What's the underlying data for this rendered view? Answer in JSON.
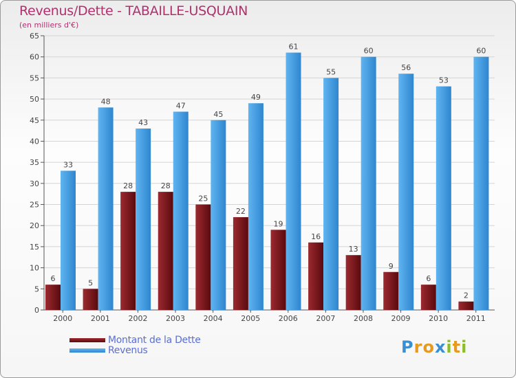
{
  "header": {
    "title": "Revenus/Dette - TABAILLE-USQUAIN",
    "subtitle": "(en milliers d'€)"
  },
  "chart_data": {
    "type": "bar",
    "categories": [
      "2000",
      "2001",
      "2002",
      "2003",
      "2004",
      "2005",
      "2006",
      "2007",
      "2008",
      "2009",
      "2010",
      "2011"
    ],
    "series": [
      {
        "name": "Montant de la Dette",
        "color": "#7b1419",
        "values": [
          6,
          5,
          28,
          28,
          25,
          22,
          19,
          16,
          13,
          9,
          6,
          2
        ]
      },
      {
        "name": "Revenus",
        "color": "#3d9ae2",
        "values": [
          33,
          48,
          43,
          47,
          45,
          49,
          61,
          55,
          60,
          56,
          53,
          60
        ]
      }
    ],
    "ylim": [
      0,
      65
    ],
    "yticks": [
      0,
      5,
      10,
      15,
      20,
      25,
      30,
      35,
      40,
      45,
      50,
      55,
      60,
      65
    ],
    "grid": true,
    "legend_position": "bottom-left"
  },
  "legend": {
    "items": [
      {
        "label": "Montant de la Dette",
        "color": "#7b1419"
      },
      {
        "label": "Revenus",
        "color": "#3d9ae2"
      }
    ]
  },
  "brand": {
    "letters": [
      {
        "char": "P",
        "color": "#3a8fd4"
      },
      {
        "char": "r",
        "color": "#e69a1f"
      },
      {
        "char": "o",
        "color": "#e69a1f"
      },
      {
        "char": "x",
        "color": "#3a8fd4"
      },
      {
        "char": "i",
        "color": "#8cbf26"
      },
      {
        "char": "t",
        "color": "#e69a1f"
      },
      {
        "char": "i",
        "color": "#8cbf26"
      }
    ]
  }
}
